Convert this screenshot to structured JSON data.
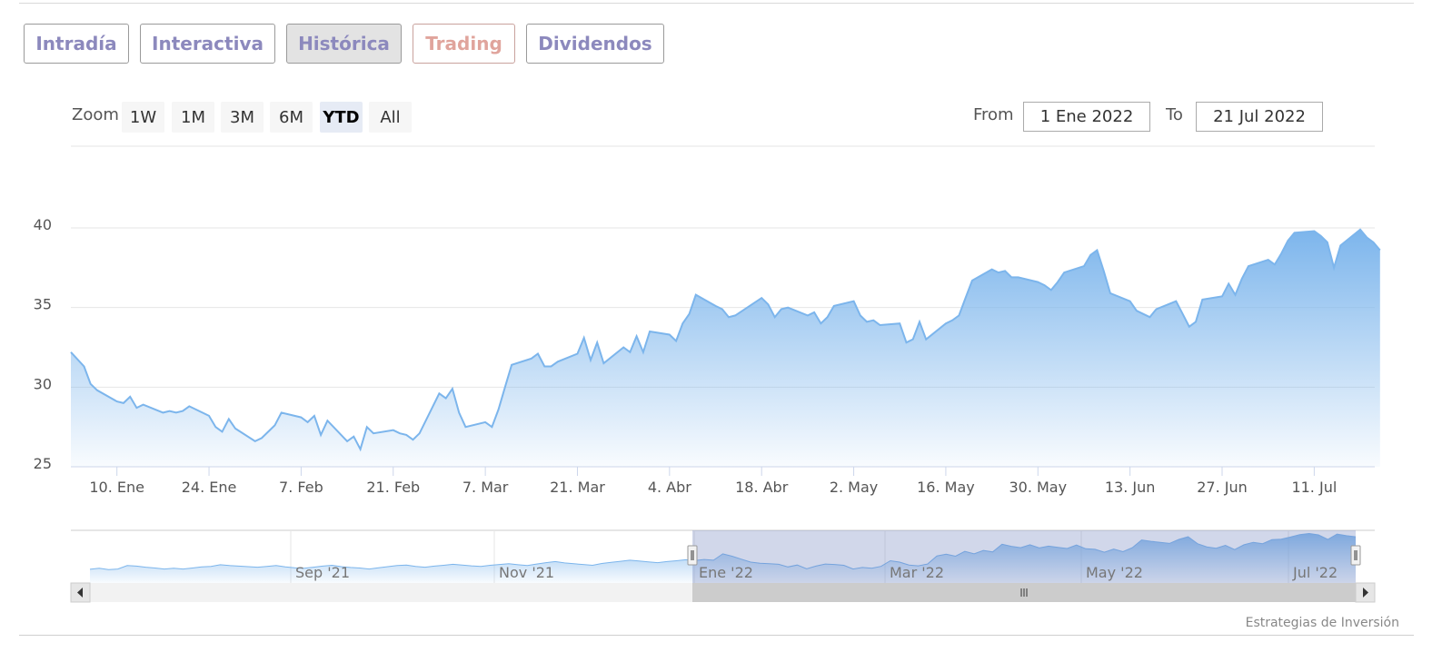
{
  "tabs": [
    {
      "label": "Intradía"
    },
    {
      "label": "Interactiva"
    },
    {
      "label": "Histórica"
    },
    {
      "label": "Trading"
    },
    {
      "label": "Dividendos"
    }
  ],
  "zoom": {
    "label": "Zoom",
    "buttons": [
      "1W",
      "1M",
      "3M",
      "6M",
      "YTD",
      "All"
    ],
    "selected": "YTD"
  },
  "range": {
    "from_label": "From",
    "from_value": "1 Ene 2022",
    "to_label": "To",
    "to_value": "21 Jul 2022"
  },
  "credits": "Estrategias de Inversión",
  "colors": {
    "line": "#7cb5ec",
    "tab_text": "#8c89bd",
    "trading_text": "#e0a49c",
    "navigator_mask": "#c5cde6"
  },
  "navigator": {
    "labels": [
      "Sep '21",
      "Nov '21",
      "Ene '22",
      "Mar '22",
      "May '22",
      "Jul '22"
    ],
    "values": [
      26.4,
      26.8,
      26.3,
      26.5,
      27.8,
      27.6,
      27.2,
      26.9,
      26.5,
      26.8,
      26.5,
      26.9,
      27.3,
      27.5,
      28.1,
      27.8,
      27.6,
      27.4,
      27.2,
      27.5,
      27.8,
      27.3,
      27.0,
      26.8,
      27.2,
      27.6,
      27.9,
      27.4,
      27.1,
      26.9,
      26.5,
      27.0,
      27.4,
      27.8,
      28.0,
      27.5,
      27.2,
      27.6,
      27.9,
      28.3,
      28.0,
      27.7,
      27.5,
      27.9,
      28.2,
      28.5,
      28.1,
      27.8,
      28.4,
      28.9,
      29.3,
      28.8,
      28.5,
      28.2,
      27.9,
      28.6,
      29.0,
      29.4,
      29.8,
      29.5,
      29.2,
      28.9,
      29.3,
      29.6,
      30.0,
      29.7,
      30.1,
      29.8,
      32.2,
      31.3,
      30.2,
      29.1,
      28.7,
      28.5,
      28.3,
      27.3,
      28.0,
      26.6,
      27.6,
      28.4,
      28.2,
      27.9,
      26.5,
      27.1,
      26.8,
      27.5,
      29.6,
      29.1,
      28.0,
      27.7,
      28.4,
      31.4,
      32.1,
      31.3,
      33.1,
      32.2,
      33.5,
      32.9,
      35.8,
      35.0,
      34.5,
      35.6,
      34.4,
      35.1,
      34.6,
      34.2,
      35.5,
      34.1,
      33.9,
      32.8,
      34.0,
      33.0,
      34.5,
      37.4,
      36.9,
      36.5,
      36.1,
      37.6,
      38.6,
      36.0,
      34.8,
      34.3,
      35.4,
      33.8,
      35.6,
      36.5,
      36.0,
      37.5,
      37.7,
      38.5,
      39.4,
      39.8,
      39.3,
      37.6,
      39.6,
      39.0,
      38.6
    ]
  },
  "chart_data": {
    "type": "area",
    "title": "",
    "xlabel": "",
    "ylabel": "",
    "ylim": [
      25,
      40
    ],
    "yticks": [
      25,
      30,
      35,
      40
    ],
    "xlim": [
      "2022-01-03",
      "2022-07-21"
    ],
    "xticks": [
      {
        "date": "2022-01-10",
        "label": "10. Ene"
      },
      {
        "date": "2022-01-24",
        "label": "24. Ene"
      },
      {
        "date": "2022-02-07",
        "label": "7. Feb"
      },
      {
        "date": "2022-02-21",
        "label": "21. Feb"
      },
      {
        "date": "2022-03-07",
        "label": "7. Mar"
      },
      {
        "date": "2022-03-21",
        "label": "21. Mar"
      },
      {
        "date": "2022-04-04",
        "label": "4. Abr"
      },
      {
        "date": "2022-04-18",
        "label": "18. Abr"
      },
      {
        "date": "2022-05-02",
        "label": "2. May"
      },
      {
        "date": "2022-05-16",
        "label": "16. May"
      },
      {
        "date": "2022-05-30",
        "label": "30. May"
      },
      {
        "date": "2022-06-13",
        "label": "13. Jun"
      },
      {
        "date": "2022-06-27",
        "label": "27. Jun"
      },
      {
        "date": "2022-07-11",
        "label": "11. Jul"
      }
    ],
    "grid": true,
    "legend": "none",
    "series": [
      {
        "color": "#7cb5ec",
        "points": [
          [
            "2022-01-03",
            32.2
          ],
          [
            "2022-01-05",
            31.3
          ],
          [
            "2022-01-06",
            30.2
          ],
          [
            "2022-01-07",
            29.8
          ],
          [
            "2022-01-10",
            29.1
          ],
          [
            "2022-01-11",
            29.0
          ],
          [
            "2022-01-12",
            29.4
          ],
          [
            "2022-01-13",
            28.7
          ],
          [
            "2022-01-14",
            28.9
          ],
          [
            "2022-01-17",
            28.4
          ],
          [
            "2022-01-18",
            28.5
          ],
          [
            "2022-01-19",
            28.4
          ],
          [
            "2022-01-20",
            28.5
          ],
          [
            "2022-01-21",
            28.8
          ],
          [
            "2022-01-24",
            28.2
          ],
          [
            "2022-01-25",
            27.5
          ],
          [
            "2022-01-26",
            27.2
          ],
          [
            "2022-01-27",
            28.0
          ],
          [
            "2022-01-28",
            27.4
          ],
          [
            "2022-01-31",
            26.6
          ],
          [
            "2022-02-01",
            26.8
          ],
          [
            "2022-02-03",
            27.6
          ],
          [
            "2022-02-04",
            28.4
          ],
          [
            "2022-02-07",
            28.1
          ],
          [
            "2022-02-08",
            27.8
          ],
          [
            "2022-02-09",
            28.2
          ],
          [
            "2022-02-10",
            27.0
          ],
          [
            "2022-02-11",
            27.9
          ],
          [
            "2022-02-14",
            26.6
          ],
          [
            "2022-02-15",
            26.9
          ],
          [
            "2022-02-16",
            26.1
          ],
          [
            "2022-02-17",
            27.5
          ],
          [
            "2022-02-18",
            27.1
          ],
          [
            "2022-02-21",
            27.3
          ],
          [
            "2022-02-22",
            27.1
          ],
          [
            "2022-02-23",
            27.0
          ],
          [
            "2022-02-24",
            26.7
          ],
          [
            "2022-02-25",
            27.1
          ],
          [
            "2022-02-28",
            29.6
          ],
          [
            "2022-03-01",
            29.3
          ],
          [
            "2022-03-02",
            29.9
          ],
          [
            "2022-03-03",
            28.4
          ],
          [
            "2022-03-04",
            27.5
          ],
          [
            "2022-03-07",
            27.8
          ],
          [
            "2022-03-08",
            27.5
          ],
          [
            "2022-03-09",
            28.6
          ],
          [
            "2022-03-10",
            30.0
          ],
          [
            "2022-03-11",
            31.4
          ],
          [
            "2022-03-14",
            31.8
          ],
          [
            "2022-03-15",
            32.1
          ],
          [
            "2022-03-16",
            31.3
          ],
          [
            "2022-03-17",
            31.3
          ],
          [
            "2022-03-18",
            31.6
          ],
          [
            "2022-03-21",
            32.1
          ],
          [
            "2022-03-22",
            33.1
          ],
          [
            "2022-03-23",
            31.7
          ],
          [
            "2022-03-24",
            32.8
          ],
          [
            "2022-03-25",
            31.5
          ],
          [
            "2022-03-28",
            32.5
          ],
          [
            "2022-03-29",
            32.2
          ],
          [
            "2022-03-30",
            33.2
          ],
          [
            "2022-03-31",
            32.2
          ],
          [
            "2022-04-01",
            33.5
          ],
          [
            "2022-04-04",
            33.3
          ],
          [
            "2022-04-05",
            32.9
          ],
          [
            "2022-04-06",
            34.0
          ],
          [
            "2022-04-07",
            34.6
          ],
          [
            "2022-04-08",
            35.8
          ],
          [
            "2022-04-11",
            35.1
          ],
          [
            "2022-04-12",
            34.9
          ],
          [
            "2022-04-13",
            34.4
          ],
          [
            "2022-04-14",
            34.5
          ],
          [
            "2022-04-18",
            35.6
          ],
          [
            "2022-04-19",
            35.2
          ],
          [
            "2022-04-20",
            34.4
          ],
          [
            "2022-04-21",
            34.9
          ],
          [
            "2022-04-22",
            35.0
          ],
          [
            "2022-04-25",
            34.5
          ],
          [
            "2022-04-26",
            34.7
          ],
          [
            "2022-04-27",
            34.0
          ],
          [
            "2022-04-28",
            34.4
          ],
          [
            "2022-04-29",
            35.1
          ],
          [
            "2022-05-02",
            35.4
          ],
          [
            "2022-05-03",
            34.5
          ],
          [
            "2022-05-04",
            34.1
          ],
          [
            "2022-05-05",
            34.2
          ],
          [
            "2022-05-06",
            33.9
          ],
          [
            "2022-05-09",
            34.0
          ],
          [
            "2022-05-10",
            32.8
          ],
          [
            "2022-05-11",
            33.0
          ],
          [
            "2022-05-12",
            34.1
          ],
          [
            "2022-05-13",
            33.0
          ],
          [
            "2022-05-16",
            34.0
          ],
          [
            "2022-05-17",
            34.2
          ],
          [
            "2022-05-18",
            34.5
          ],
          [
            "2022-05-19",
            35.6
          ],
          [
            "2022-05-20",
            36.7
          ],
          [
            "2022-05-23",
            37.4
          ],
          [
            "2022-05-24",
            37.2
          ],
          [
            "2022-05-25",
            37.3
          ],
          [
            "2022-05-26",
            36.9
          ],
          [
            "2022-05-27",
            36.9
          ],
          [
            "2022-05-30",
            36.6
          ],
          [
            "2022-05-31",
            36.4
          ],
          [
            "2022-06-01",
            36.1
          ],
          [
            "2022-06-02",
            36.6
          ],
          [
            "2022-06-03",
            37.2
          ],
          [
            "2022-06-06",
            37.6
          ],
          [
            "2022-06-07",
            38.3
          ],
          [
            "2022-06-08",
            38.6
          ],
          [
            "2022-06-09",
            37.3
          ],
          [
            "2022-06-10",
            35.9
          ],
          [
            "2022-06-13",
            35.4
          ],
          [
            "2022-06-14",
            34.8
          ],
          [
            "2022-06-15",
            34.6
          ],
          [
            "2022-06-16",
            34.4
          ],
          [
            "2022-06-17",
            34.9
          ],
          [
            "2022-06-20",
            35.4
          ],
          [
            "2022-06-21",
            34.6
          ],
          [
            "2022-06-22",
            33.8
          ],
          [
            "2022-06-23",
            34.1
          ],
          [
            "2022-06-24",
            35.5
          ],
          [
            "2022-06-27",
            35.7
          ],
          [
            "2022-06-28",
            36.5
          ],
          [
            "2022-06-29",
            35.8
          ],
          [
            "2022-06-30",
            36.8
          ],
          [
            "2022-07-01",
            37.6
          ],
          [
            "2022-07-04",
            38.0
          ],
          [
            "2022-07-05",
            37.7
          ],
          [
            "2022-07-06",
            38.4
          ],
          [
            "2022-07-07",
            39.2
          ],
          [
            "2022-07-08",
            39.7
          ],
          [
            "2022-07-11",
            39.8
          ],
          [
            "2022-07-12",
            39.5
          ],
          [
            "2022-07-13",
            39.1
          ],
          [
            "2022-07-14",
            37.5
          ],
          [
            "2022-07-15",
            38.9
          ],
          [
            "2022-07-18",
            39.9
          ],
          [
            "2022-07-19",
            39.4
          ],
          [
            "2022-07-20",
            39.1
          ],
          [
            "2022-07-21",
            38.6
          ]
        ]
      }
    ]
  }
}
